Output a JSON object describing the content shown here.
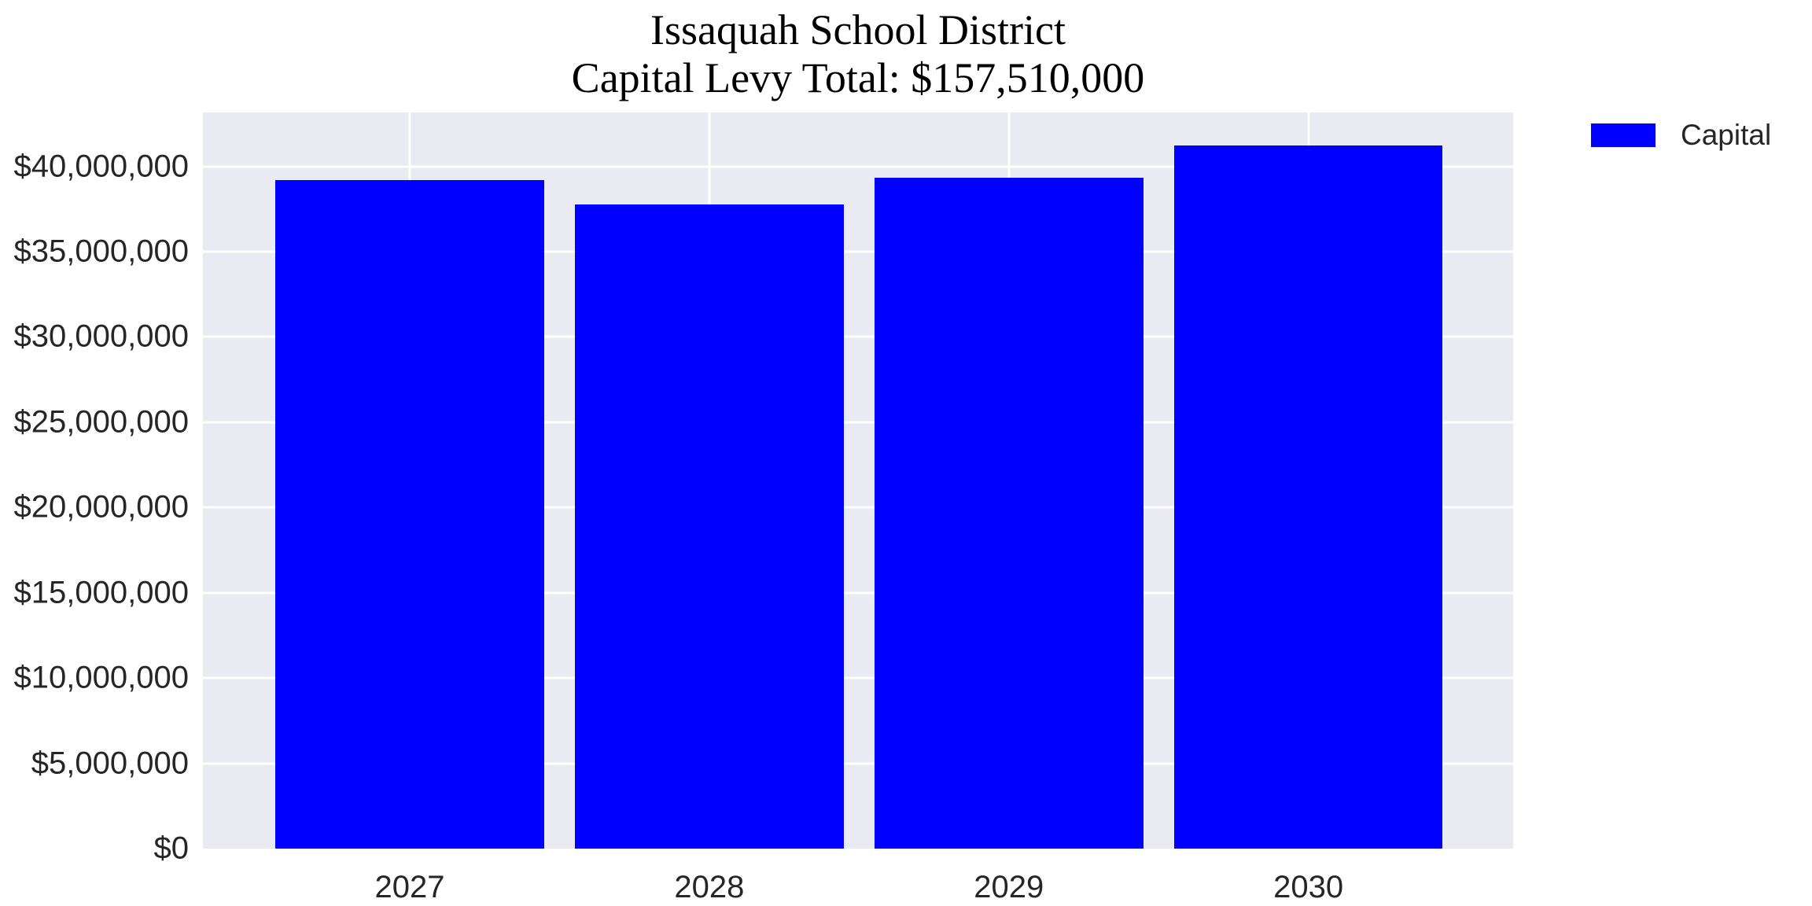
{
  "chart_data": {
    "type": "bar",
    "title_lines": [
      "Issaquah School District",
      "Capital Levy Total: $157,510,000"
    ],
    "total_label_value": "$157,510,000",
    "categories": [
      "2027",
      "2028",
      "2029",
      "2030"
    ],
    "series": [
      {
        "name": "Capital",
        "color": "#0000ff",
        "values": [
          39185000,
          37775000,
          39325000,
          41225000
        ]
      }
    ],
    "xlabel": "",
    "ylabel": "",
    "ylim": [
      0,
      43160000
    ],
    "y_ticks": [
      {
        "value": 0,
        "label": "$0"
      },
      {
        "value": 5000000,
        "label": "$5,000,000"
      },
      {
        "value": 10000000,
        "label": "$10,000,000"
      },
      {
        "value": 15000000,
        "label": "$15,000,000"
      },
      {
        "value": 20000000,
        "label": "$20,000,000"
      },
      {
        "value": 25000000,
        "label": "$25,000,000"
      },
      {
        "value": 30000000,
        "label": "$30,000,000"
      },
      {
        "value": 35000000,
        "label": "$35,000,000"
      },
      {
        "value": 40000000,
        "label": "$40,000,000"
      }
    ],
    "grid": true,
    "legend": {
      "label": "Capital",
      "position": "upper-right-outside",
      "swatch_color": "#0000ff"
    }
  },
  "style": {
    "plot_background": "#eaeaf2",
    "grid_color": "#ffffff",
    "bar_color": "#0000ff",
    "tick_text_color": "#262626",
    "title_color": "#000000",
    "page_background": "#ffffff"
  }
}
